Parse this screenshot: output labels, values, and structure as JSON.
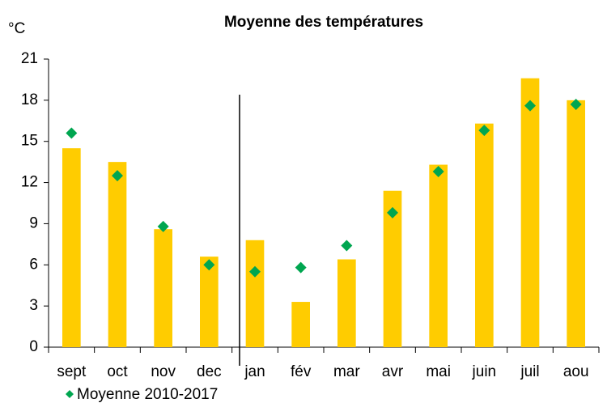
{
  "chart_data": {
    "type": "bar",
    "title": "Moyenne des températures",
    "ylabel": "°C",
    "categories": [
      "sept",
      "oct",
      "nov",
      "dec",
      "jan",
      "fév",
      "mar",
      "avr",
      "mai",
      "juin",
      "juil",
      "aou"
    ],
    "series": [
      {
        "color": "#ffcc00",
        "values": [
          14.5,
          13.5,
          8.6,
          6.6,
          7.8,
          3.3,
          6.4,
          11.4,
          13.3,
          16.3,
          19.6,
          18.0
        ]
      },
      {
        "name": "Moyenne 2010-2017",
        "color": "#00a650",
        "marker": "diamond",
        "values": [
          15.6,
          12.5,
          8.8,
          6.0,
          5.5,
          5.8,
          7.4,
          9.8,
          12.8,
          15.8,
          17.6,
          17.7
        ]
      }
    ],
    "ylim": [
      0,
      21
    ],
    "yticks": [
      0,
      3,
      6,
      9,
      12,
      15,
      18,
      21
    ],
    "grid": false
  }
}
